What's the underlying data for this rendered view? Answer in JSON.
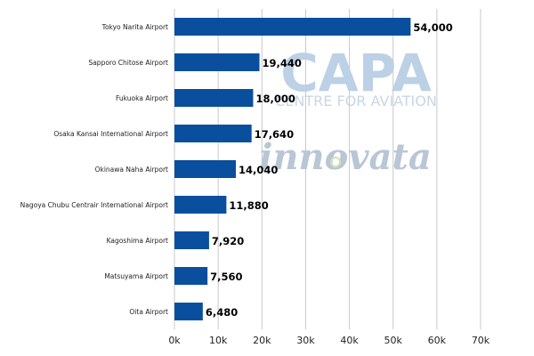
{
  "colors": {
    "bar": "#0A4F9E",
    "grid": "#c8c8c8",
    "watermark_main": "#bcd0e6",
    "watermark_sub": "#c9d6e6",
    "watermark_inno": "#b8c6d6",
    "watermark_dot": "#cfe3b0"
  },
  "watermark": {
    "main": "CAPA",
    "sub": "CENTRE FOR AVIATION",
    "secondary": "innovata"
  },
  "chart_data": {
    "type": "bar",
    "orientation": "horizontal",
    "categories": [
      "Tokyo Narita Airport",
      "Sapporo Chitose Airport",
      "Fukuoka Airport",
      "Osaka Kansai International Airport",
      "Okinawa Naha Airport",
      "Nagoya Chubu Centrair International Airport",
      "Kagoshima Airport",
      "Matsuyama Airport",
      "Oita Airport"
    ],
    "values": [
      54000,
      19440,
      18000,
      17640,
      14040,
      11880,
      7920,
      7560,
      6480
    ],
    "value_labels": [
      "54,000",
      "19,440",
      "18,000",
      "17,640",
      "14,040",
      "11,880",
      "7,920",
      "7,560",
      "6,480"
    ],
    "xlim": [
      0,
      70000
    ],
    "x_ticks": [
      0,
      10000,
      20000,
      30000,
      40000,
      50000,
      60000,
      70000
    ],
    "x_tick_labels": [
      "0k",
      "10k",
      "20k",
      "30k",
      "40k",
      "50k",
      "60k",
      "70k"
    ],
    "grid": true,
    "title": "",
    "xlabel": "",
    "ylabel": ""
  }
}
